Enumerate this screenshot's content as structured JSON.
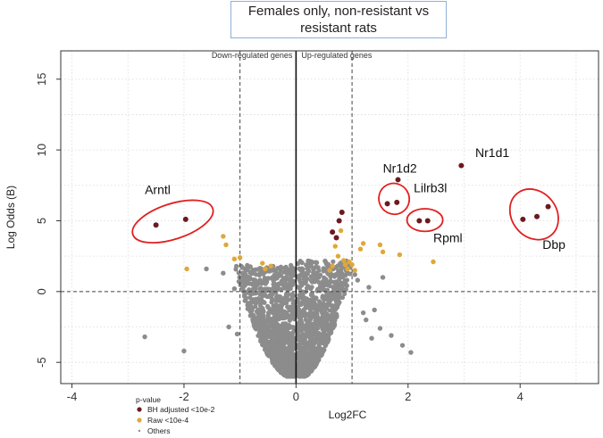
{
  "chart_data": {
    "type": "scatter",
    "title": "Females only, non-resistant vs resistant rats",
    "xlabel": "Log2FC",
    "ylabel": "Log Odds (B)",
    "xlim": [
      -4.2,
      5.4
    ],
    "ylim": [
      -6.5,
      17
    ],
    "x_ticks": [
      -4,
      -2,
      0,
      2,
      4
    ],
    "y_ticks": [
      -5,
      0,
      5,
      10,
      15
    ],
    "grid": true,
    "annotations": {
      "down": "Down-regulated genes",
      "up": "Up-regulated genes"
    },
    "reference_lines": {
      "vertical_dashed": [
        -1,
        1
      ],
      "vertical_solid": [
        0
      ],
      "horizontal_dashed": [
        0
      ]
    },
    "legend": {
      "title": "p-value",
      "entries": [
        {
          "label": "BH adjusted <10e-2",
          "color": "#6b1a1f"
        },
        {
          "label": "Raw <10e-4",
          "color": "#e0a83a"
        },
        {
          "label": "Others",
          "color": "#8c8c8c"
        }
      ]
    },
    "series": [
      {
        "name": "BH adjusted <10e-2",
        "color": "#6b1a1f",
        "points": [
          [
            -2.5,
            4.7
          ],
          [
            -1.97,
            5.1
          ],
          [
            1.63,
            6.2
          ],
          [
            1.8,
            6.3
          ],
          [
            1.82,
            7.9
          ],
          [
            2.2,
            5.0
          ],
          [
            2.35,
            5.0
          ],
          [
            2.95,
            8.9
          ],
          [
            4.05,
            5.1
          ],
          [
            4.3,
            5.3
          ],
          [
            4.5,
            6.0
          ],
          [
            0.65,
            4.2
          ],
          [
            0.72,
            3.8
          ],
          [
            0.77,
            5.0
          ],
          [
            0.82,
            5.6
          ]
        ]
      },
      {
        "name": "Raw <10e-4",
        "color": "#e0a83a",
        "points": [
          [
            -1.95,
            1.6
          ],
          [
            -1.3,
            3.9
          ],
          [
            -1.25,
            3.3
          ],
          [
            -1.1,
            2.3
          ],
          [
            -1.0,
            2.4
          ],
          [
            -0.6,
            2.0
          ],
          [
            -0.55,
            1.6
          ],
          [
            -0.45,
            1.8
          ],
          [
            0.6,
            1.5
          ],
          [
            0.65,
            1.8
          ],
          [
            0.7,
            3.2
          ],
          [
            0.75,
            2.5
          ],
          [
            0.8,
            4.3
          ],
          [
            0.85,
            2.2
          ],
          [
            0.88,
            1.9
          ],
          [
            0.92,
            1.6
          ],
          [
            0.95,
            2.1
          ],
          [
            1.05,
            1.5
          ],
          [
            1.15,
            3.0
          ],
          [
            1.2,
            3.4
          ],
          [
            1.5,
            3.3
          ],
          [
            1.55,
            2.8
          ],
          [
            1.85,
            2.6
          ],
          [
            2.45,
            2.1
          ],
          [
            1.0,
            1.9
          ]
        ]
      },
      {
        "name": "Others",
        "color": "#8c8c8c",
        "points": [
          [
            -2.7,
            -3.2
          ],
          [
            -2.0,
            -4.2
          ],
          [
            -1.6,
            1.6
          ],
          [
            -1.3,
            1.3
          ],
          [
            -1.1,
            0.2
          ],
          [
            -1.05,
            -3.0
          ],
          [
            -0.9,
            1.1
          ],
          [
            -1.2,
            -2.5
          ],
          [
            1.05,
            1.2
          ],
          [
            1.2,
            -1.5
          ],
          [
            1.25,
            -2.0
          ],
          [
            1.4,
            -1.3
          ],
          [
            1.5,
            -2.6
          ],
          [
            1.7,
            -3.1
          ],
          [
            1.9,
            -3.8
          ],
          [
            2.05,
            -4.3
          ],
          [
            1.3,
            0.3
          ],
          [
            1.1,
            0.8
          ],
          [
            1.55,
            1.0
          ],
          [
            1.35,
            -3.3
          ]
        ]
      }
    ],
    "labels": [
      {
        "text": "Arntl",
        "x": -2.7,
        "y": 6.9
      },
      {
        "text": "Nr1d2",
        "x": 1.55,
        "y": 8.4
      },
      {
        "text": "Lilrb3l",
        "x": 2.1,
        "y": 7.0
      },
      {
        "text": "Rpml",
        "x": 2.45,
        "y": 3.5
      },
      {
        "text": "Nr1d1",
        "x": 3.2,
        "y": 9.5
      },
      {
        "text": "Dbp",
        "x": 4.4,
        "y": 3.0
      }
    ],
    "highlights": [
      {
        "gene": "Arntl",
        "cx": -2.2,
        "cy": 4.95,
        "rx": 0.75,
        "ry": 1.25
      },
      {
        "gene": "Lilrb3l",
        "cx": 1.75,
        "cy": 6.55,
        "rx": 0.27,
        "ry": 1.1
      },
      {
        "gene": "Rpml",
        "cx": 2.3,
        "cy": 5.05,
        "rx": 0.32,
        "ry": 0.8
      },
      {
        "gene": "Dbp",
        "cx": 4.25,
        "cy": 5.45,
        "rx": 0.4,
        "ry": 1.9
      }
    ]
  }
}
